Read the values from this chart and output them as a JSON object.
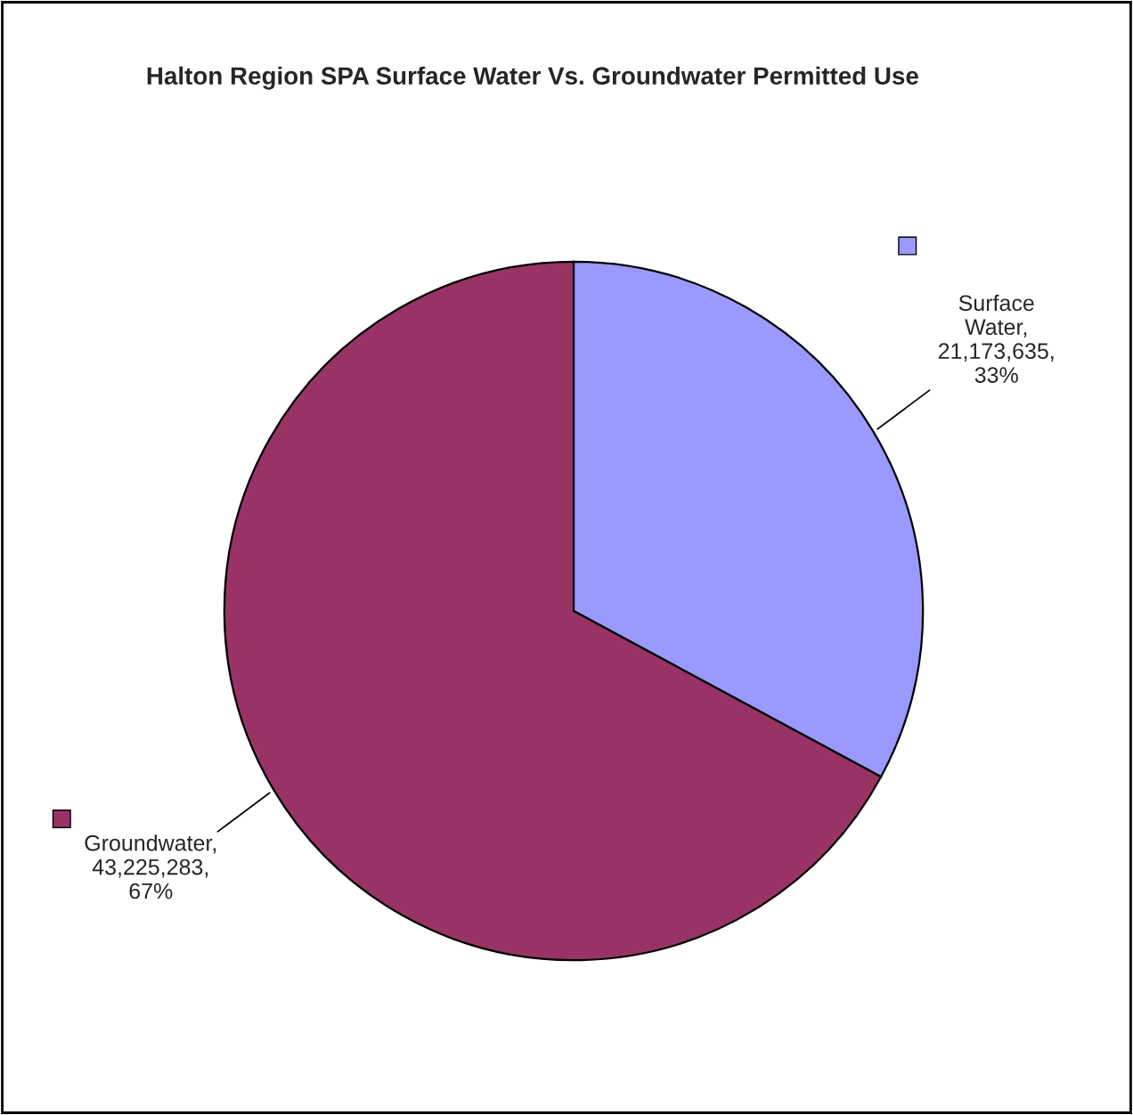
{
  "chart_data": {
    "type": "pie",
    "title": "Halton Region SPA Surface Water Vs. Groundwater Permitted Use",
    "categories": [
      "Surface Water",
      "Groundwater"
    ],
    "values": [
      21173635,
      43225283
    ],
    "colors": [
      "#9999ff",
      "#993366"
    ],
    "value_labels": [
      ", 21,173,635, 33%",
      ", 43,225,283, 67%"
    ]
  }
}
